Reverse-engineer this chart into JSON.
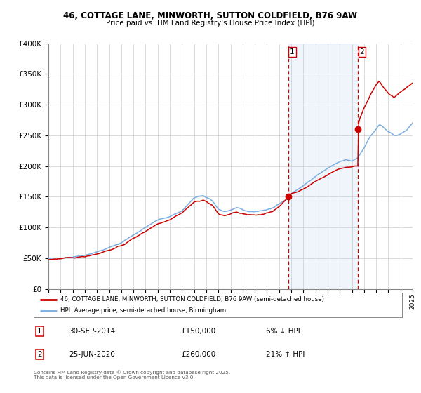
{
  "title_line1": "46, COTTAGE LANE, MINWORTH, SUTTON COLDFIELD, B76 9AW",
  "title_line2": "Price paid vs. HM Land Registry's House Price Index (HPI)",
  "legend_label1": "46, COTTAGE LANE, MINWORTH, SUTTON COLDFIELD, B76 9AW (semi-detached house)",
  "legend_label2": "HPI: Average price, semi-detached house, Birmingham",
  "sale1_date": "30-SEP-2014",
  "sale1_price": 150000,
  "sale1_pct": "6% ↓ HPI",
  "sale2_date": "25-JUN-2020",
  "sale2_price": 260000,
  "sale2_pct": "21% ↑ HPI",
  "footnote": "Contains HM Land Registry data © Crown copyright and database right 2025.\nThis data is licensed under the Open Government Licence v3.0.",
  "red_color": "#cc0000",
  "blue_color": "#7aade0",
  "shade_color": "#ddeeff",
  "background_color": "#ffffff",
  "grid_color": "#cccccc",
  "ylim": [
    0,
    400000
  ],
  "yticks": [
    0,
    50000,
    100000,
    150000,
    200000,
    250000,
    300000,
    350000,
    400000
  ],
  "sale1_x": 2014.75,
  "sale2_x": 2020.5,
  "xmin": 1995,
  "xmax": 2025
}
